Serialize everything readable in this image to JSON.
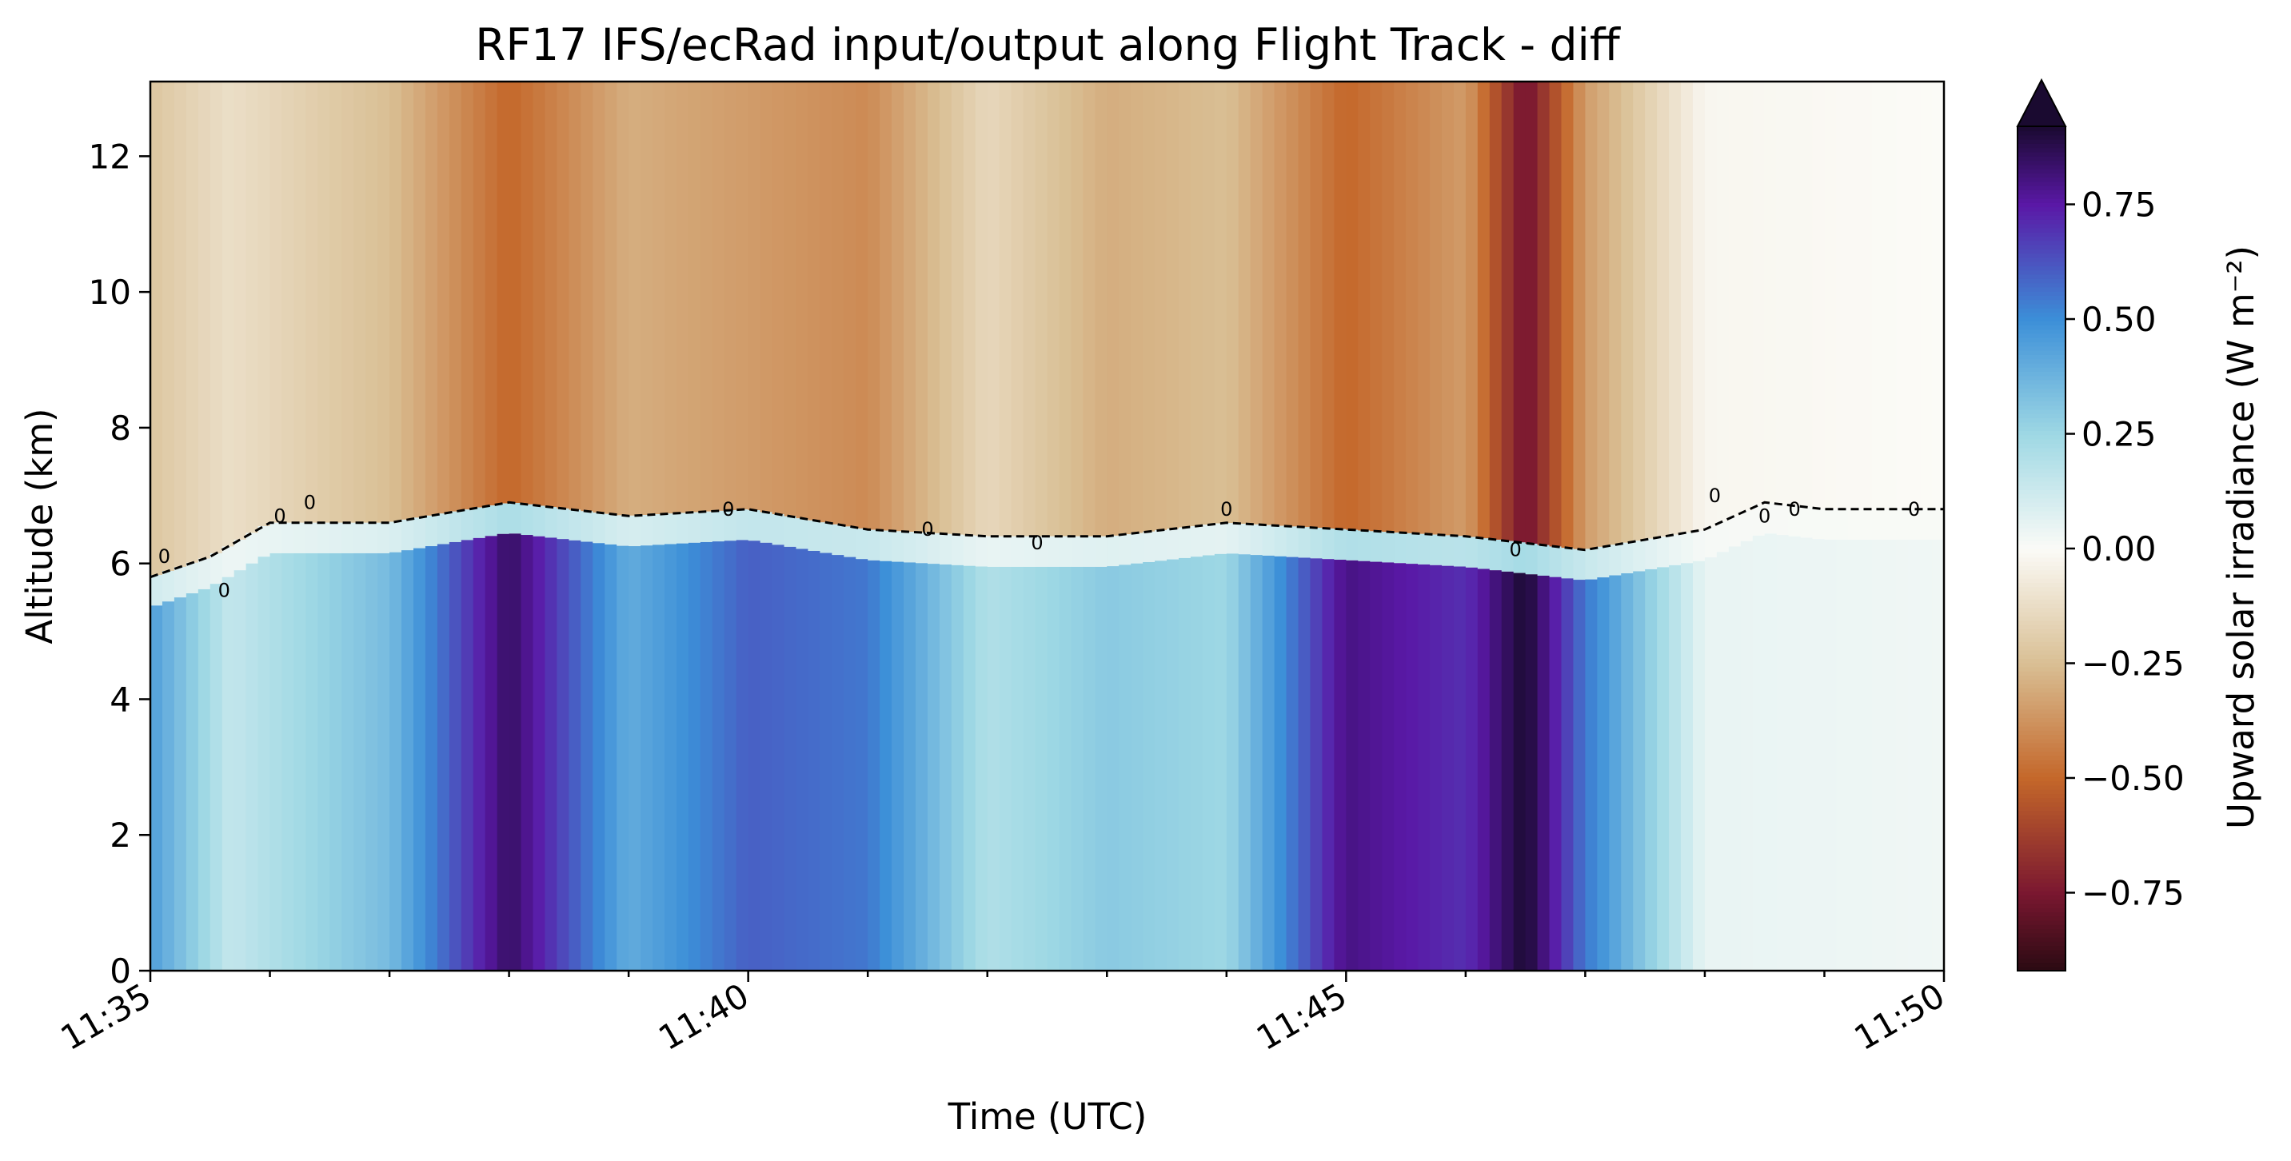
{
  "chart_data": {
    "type": "heatmap",
    "title": "RF17 IFS/ecRad input/output along Flight Track - diff",
    "xlabel": "Time (UTC)",
    "ylabel": "Altitude (km)",
    "xlim": [
      "11:35",
      "11:50"
    ],
    "ylim": [
      0,
      13.1
    ],
    "x_ticks": [
      "11:35",
      "11:40",
      "11:45",
      "11:50"
    ],
    "y_ticks": [
      0,
      2,
      4,
      6,
      8,
      10,
      12
    ],
    "colorbar": {
      "label": "Upward solar irradiance (W m⁻²)",
      "range": [
        -0.92,
        0.92
      ],
      "ticks": [
        -0.75,
        -0.5,
        -0.25,
        0.0,
        0.25,
        0.5,
        0.75
      ],
      "tick_labels": [
        "−0.75",
        "−0.50",
        "−0.25",
        "0.00",
        "0.25",
        "0.50",
        "0.75"
      ],
      "extend": "max",
      "colormap_stops": [
        {
          "v": -0.92,
          "color": "#2a0a12"
        },
        {
          "v": -0.75,
          "color": "#7a1730"
        },
        {
          "v": -0.5,
          "color": "#c4672a"
        },
        {
          "v": -0.25,
          "color": "#d9bf94"
        },
        {
          "v": 0.0,
          "color": "#fbfbf7"
        },
        {
          "v": 0.25,
          "color": "#9ed8e4"
        },
        {
          "v": 0.5,
          "color": "#3c8fd8"
        },
        {
          "v": 0.75,
          "color": "#5a18a6"
        },
        {
          "v": 0.92,
          "color": "#1a0a30"
        }
      ]
    },
    "contour": {
      "level": 0,
      "label": "0",
      "style": "dashed",
      "color": "#000000"
    },
    "description": "Upper layer (approx 6.5–13 km) dominated by negative differences; lower layer (0 – approx 6 km) dominated by positive differences; zero contour near 6–7 km.",
    "upper_layer_values": [
      {
        "t": "11:35",
        "v": -0.22
      },
      {
        "t": "11:35:40",
        "v": -0.12
      },
      {
        "t": "11:37",
        "v": -0.25
      },
      {
        "t": "11:38",
        "v": -0.5
      },
      {
        "t": "11:39",
        "v": -0.3
      },
      {
        "t": "11:40",
        "v": -0.35
      },
      {
        "t": "11:41",
        "v": -0.4
      },
      {
        "t": "11:42",
        "v": -0.15
      },
      {
        "t": "11:43",
        "v": -0.3
      },
      {
        "t": "11:44",
        "v": -0.25
      },
      {
        "t": "11:45",
        "v": -0.5
      },
      {
        "t": "11:46",
        "v": -0.35
      },
      {
        "t": "11:46:30",
        "v": -0.78
      },
      {
        "t": "11:47",
        "v": -0.35
      },
      {
        "t": "11:48",
        "v": -0.02
      },
      {
        "t": "11:50",
        "v": 0.0
      }
    ],
    "lower_layer_values": [
      {
        "t": "11:35",
        "v": 0.45
      },
      {
        "t": "11:35:40",
        "v": 0.15
      },
      {
        "t": "11:37",
        "v": 0.35
      },
      {
        "t": "11:38",
        "v": 0.85
      },
      {
        "t": "11:39",
        "v": 0.4
      },
      {
        "t": "11:40",
        "v": 0.6
      },
      {
        "t": "11:41",
        "v": 0.55
      },
      {
        "t": "11:42",
        "v": 0.2
      },
      {
        "t": "11:43",
        "v": 0.3
      },
      {
        "t": "11:44",
        "v": 0.25
      },
      {
        "t": "11:45",
        "v": 0.8
      },
      {
        "t": "11:46",
        "v": 0.7
      },
      {
        "t": "11:46:30",
        "v": 0.92
      },
      {
        "t": "11:47",
        "v": 0.55
      },
      {
        "t": "11:48",
        "v": 0.05
      },
      {
        "t": "11:50",
        "v": 0.03
      }
    ],
    "zero_contour_altitude_km": [
      {
        "t": "11:35",
        "alt": 5.8
      },
      {
        "t": "11:35:30",
        "alt": 6.1
      },
      {
        "t": "11:36",
        "alt": 6.6
      },
      {
        "t": "11:37",
        "alt": 6.6
      },
      {
        "t": "11:38",
        "alt": 6.9
      },
      {
        "t": "11:39",
        "alt": 6.7
      },
      {
        "t": "11:40",
        "alt": 6.8
      },
      {
        "t": "11:41",
        "alt": 6.5
      },
      {
        "t": "11:42",
        "alt": 6.4
      },
      {
        "t": "11:43",
        "alt": 6.4
      },
      {
        "t": "11:44",
        "alt": 6.6
      },
      {
        "t": "11:45",
        "alt": 6.5
      },
      {
        "t": "11:46",
        "alt": 6.4
      },
      {
        "t": "11:47",
        "alt": 6.2
      },
      {
        "t": "11:48",
        "alt": 6.5
      },
      {
        "t": "11:48:30",
        "alt": 6.9
      },
      {
        "t": "11:49",
        "alt": 6.8
      },
      {
        "t": "11:50",
        "alt": 6.8
      }
    ],
    "contour_label_positions": [
      {
        "t": "11:35:07",
        "alt": 6.1
      },
      {
        "t": "11:35:37",
        "alt": 5.6
      },
      {
        "t": "11:36:05",
        "alt": 6.7
      },
      {
        "t": "11:36:20",
        "alt": 6.9
      },
      {
        "t": "11:39:50",
        "alt": 6.8
      },
      {
        "t": "11:41:30",
        "alt": 6.5
      },
      {
        "t": "11:42:25",
        "alt": 6.3
      },
      {
        "t": "11:44:00",
        "alt": 6.8
      },
      {
        "t": "11:46:25",
        "alt": 6.2
      },
      {
        "t": "11:48:05",
        "alt": 7.0
      },
      {
        "t": "11:48:30",
        "alt": 6.7
      },
      {
        "t": "11:48:45",
        "alt": 6.8
      },
      {
        "t": "11:49:45",
        "alt": 6.8
      }
    ]
  }
}
